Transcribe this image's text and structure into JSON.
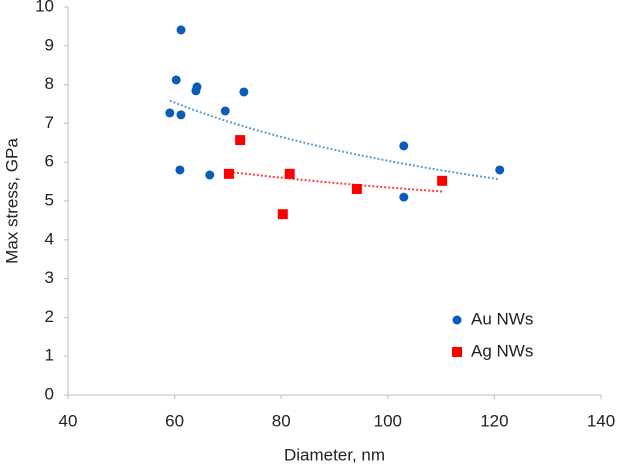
{
  "chart_data": {
    "type": "scatter",
    "x_label": "Diameter, nm",
    "y_label": "Max stress, GPa",
    "xlim": [
      40,
      140
    ],
    "xticks": [
      40,
      60,
      80,
      100,
      120,
      140
    ],
    "ylim": [
      0,
      10
    ],
    "yticks": [
      0,
      1,
      2,
      3,
      4,
      5,
      6,
      7,
      8,
      9,
      10
    ],
    "grid": false,
    "legend": "lower right",
    "series": [
      {
        "name": "Au NWs",
        "color": "#0b5cb5",
        "marker": "circle",
        "trendline": true,
        "trendline_color": "#5b9bd5",
        "x": [
          59.1,
          61.2,
          60.3,
          61.2,
          61.0,
          64.0,
          64.2,
          69.5,
          73.0,
          66.6,
          103,
          103,
          121
        ],
        "values": [
          7.27,
          9.41,
          8.12,
          7.22,
          5.8,
          7.84,
          7.94,
          7.32,
          7.81,
          5.67,
          6.42,
          5.1,
          5.8
        ]
      },
      {
        "name": "Ag NWs",
        "color": "#ff0000",
        "marker": "square",
        "trendline": true,
        "trendline_color": "#ff3b3b",
        "x": [
          70.2,
          72.3,
          81.6,
          80.3,
          94.2,
          110.2
        ],
        "values": [
          5.7,
          6.57,
          5.7,
          4.66,
          5.31,
          5.52
        ]
      }
    ]
  }
}
